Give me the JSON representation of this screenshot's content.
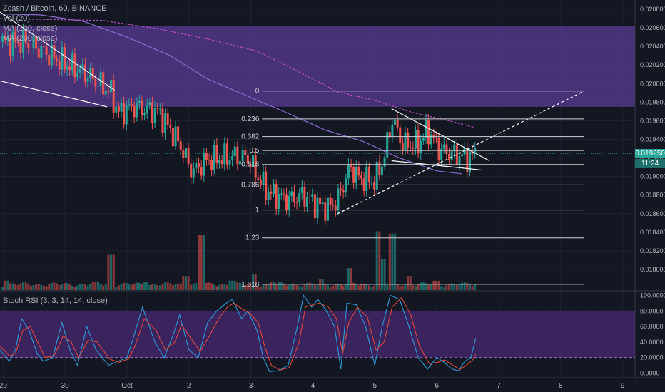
{
  "legend": {
    "symbol": "Zcash / Bitcoin, 60, BINANCE",
    "vol": "Vol (20)",
    "ma100": "MA (100, close)",
    "ma200": "MA (200, close)",
    "rsi": "Stoch RSI (3, 3, 14, 14, close)"
  },
  "price_tag": {
    "price": "0.019250",
    "countdown": "11:24"
  },
  "colors": {
    "background": "#131722",
    "grid": "#1e2230",
    "up": "#26a69a",
    "down": "#ef5350",
    "zone": "#5b3b99",
    "rsi_band": "#4a2a73",
    "ma100": "#8d6bd1",
    "ma200": "#c04fc7",
    "rsi_k": "#2a9bd8",
    "rsi_d": "#e0473d",
    "price_line": "#26a69a"
  },
  "chart_data": [
    {
      "type": "candlestick",
      "title": "Zcash / Bitcoin, 60, BINANCE",
      "y_ticks": [
        "0.020800",
        "0.020600",
        "0.020400",
        "0.020200",
        "0.020000",
        "0.019800",
        "0.019600",
        "0.019400",
        "0.019200",
        "0.019000",
        "0.018800",
        "0.018600",
        "0.018400",
        "0.018200",
        "0.018000"
      ],
      "ylim": [
        0.01777,
        0.0209
      ],
      "x_ticks": [
        {
          "label": "29",
          "x": 0
        },
        {
          "label": "30",
          "x": 1
        },
        {
          "label": "Oct",
          "x": 2
        },
        {
          "label": "2",
          "x": 3
        },
        {
          "label": "3",
          "x": 4
        },
        {
          "label": "4",
          "x": 5
        },
        {
          "label": "5",
          "x": 6
        },
        {
          "label": "6",
          "x": 7
        },
        {
          "label": "7",
          "x": 8
        },
        {
          "label": "8",
          "x": 9
        },
        {
          "label": "9",
          "x": 10
        }
      ],
      "xlim": [
        -0.05,
        10.2
      ],
      "last_price": 0.01925,
      "resistance_zone": [
        0.01975,
        0.02062
      ],
      "fib_levels": [
        {
          "label": "0",
          "value": 0.01992
        },
        {
          "label": "0.236",
          "value": 0.01962
        },
        {
          "label": "0.382",
          "value": 0.01943
        },
        {
          "label": "0.5",
          "value": 0.01928
        },
        {
          "label": "0.618",
          "value": 0.01913
        },
        {
          "label": "0.786",
          "value": 0.01891
        },
        {
          "label": "1",
          "value": 0.01864
        },
        {
          "label": "1.23",
          "value": 0.01834
        },
        {
          "label": "1.618",
          "value": 0.01784
        }
      ],
      "fib_x_range": [
        4.18,
        9.38
      ],
      "trend_lines": [
        {
          "from": [
            -0.05,
            0.02077
          ],
          "to": [
            1.8,
            0.01993
          ]
        },
        {
          "from": [
            -0.05,
            0.02003
          ],
          "to": [
            1.68,
            0.01975
          ]
        },
        {
          "from": [
            6.27,
            0.01973
          ],
          "to": [
            7.85,
            0.01917
          ]
        },
        {
          "from": [
            6.27,
            0.01917
          ],
          "to": [
            7.73,
            0.01907
          ]
        },
        {
          "from": [
            5.4,
            0.0186
          ],
          "to": [
            9.38,
            0.01992
          ],
          "dashed": true
        }
      ],
      "ma100_points": [
        [
          -0.05,
          0.02075
        ],
        [
          0.6,
          0.02074
        ],
        [
          1.3,
          0.02067
        ],
        [
          2.0,
          0.0205
        ],
        [
          2.7,
          0.0203
        ],
        [
          3.3,
          0.02005
        ],
        [
          4.0,
          0.01985
        ],
        [
          4.6,
          0.01968
        ],
        [
          5.2,
          0.0195
        ],
        [
          5.8,
          0.01938
        ],
        [
          6.4,
          0.0192
        ],
        [
          7.0,
          0.01906
        ],
        [
          7.4,
          0.01903
        ]
      ],
      "ma200_points": [
        [
          -0.05,
          0.0207
        ],
        [
          0.8,
          0.02069
        ],
        [
          1.6,
          0.02068
        ],
        [
          2.5,
          0.02059
        ],
        [
          3.3,
          0.02048
        ],
        [
          4.1,
          0.02035
        ],
        [
          4.8,
          0.02012
        ],
        [
          5.4,
          0.01991
        ],
        [
          6.0,
          0.01982
        ],
        [
          6.6,
          0.01969
        ],
        [
          7.2,
          0.0196
        ],
        [
          7.6,
          0.01953
        ]
      ],
      "ohlc_key_points": [
        [
          -0.05,
          0.02045
        ],
        [
          0.4,
          0.02044
        ],
        [
          0.9,
          0.02025
        ],
        [
          1.35,
          0.0201
        ],
        [
          1.75,
          0.0199
        ],
        [
          1.85,
          0.01968
        ],
        [
          2.1,
          0.01975
        ],
        [
          2.5,
          0.0197
        ],
        [
          2.85,
          0.01935
        ],
        [
          3.05,
          0.01905
        ],
        [
          3.3,
          0.01918
        ],
        [
          3.75,
          0.01922
        ],
        [
          3.95,
          0.0192
        ],
        [
          4.15,
          0.01895
        ],
        [
          4.3,
          0.01882
        ],
        [
          4.6,
          0.01875
        ],
        [
          4.85,
          0.0188
        ],
        [
          5.05,
          0.0187
        ],
        [
          5.25,
          0.01866
        ],
        [
          5.4,
          0.01875
        ],
        [
          5.6,
          0.0191
        ],
        [
          5.75,
          0.01898
        ],
        [
          6.0,
          0.01895
        ],
        [
          6.15,
          0.0192
        ],
        [
          6.28,
          0.01962
        ],
        [
          6.45,
          0.01935
        ],
        [
          6.7,
          0.01935
        ],
        [
          6.85,
          0.0195
        ],
        [
          7.05,
          0.01928
        ],
        [
          7.3,
          0.01924
        ],
        [
          7.5,
          0.0192
        ],
        [
          7.63,
          0.01925
        ]
      ],
      "volume_ylim": [
        0,
        100
      ],
      "volume_spikes": [
        [
          0.05,
          12
        ],
        [
          0.55,
          6
        ],
        [
          1.0,
          8
        ],
        [
          1.5,
          10
        ],
        [
          1.75,
          45
        ],
        [
          2.3,
          10
        ],
        [
          2.95,
          18
        ],
        [
          3.2,
          70
        ],
        [
          3.7,
          12
        ],
        [
          4.05,
          20
        ],
        [
          4.35,
          10
        ],
        [
          5.15,
          14
        ],
        [
          5.6,
          28
        ],
        [
          6.05,
          75
        ],
        [
          6.15,
          40
        ],
        [
          6.28,
          72
        ],
        [
          6.55,
          18
        ],
        [
          7.0,
          12
        ],
        [
          7.4,
          8
        ]
      ]
    },
    {
      "type": "line",
      "title": "Stoch RSI (3, 3, 14, 14, close)",
      "y_ticks": [
        "100.0000",
        "80.0000",
        "60.0000",
        "40.0000",
        "20.0000",
        "0.0000"
      ],
      "ylim": [
        -6,
        106
      ],
      "band": [
        20,
        80
      ],
      "series": [
        {
          "name": "K",
          "points": [
            [
              -0.05,
              30
            ],
            [
              0.1,
              15
            ],
            [
              0.2,
              30
            ],
            [
              0.3,
              70
            ],
            [
              0.42,
              55
            ],
            [
              0.55,
              25
            ],
            [
              0.65,
              15
            ],
            [
              0.8,
              20
            ],
            [
              0.95,
              65
            ],
            [
              1.08,
              30
            ],
            [
              1.2,
              10
            ],
            [
              1.35,
              60
            ],
            [
              1.5,
              30
            ],
            [
              1.7,
              10
            ],
            [
              1.85,
              15
            ],
            [
              2.0,
              20
            ],
            [
              2.1,
              45
            ],
            [
              2.25,
              85
            ],
            [
              2.45,
              40
            ],
            [
              2.6,
              20
            ],
            [
              2.75,
              50
            ],
            [
              2.85,
              75
            ],
            [
              3.0,
              30
            ],
            [
              3.15,
              20
            ],
            [
              3.3,
              65
            ],
            [
              3.45,
              80
            ],
            [
              3.6,
              90
            ],
            [
              3.7,
              95
            ],
            [
              3.85,
              70
            ],
            [
              3.95,
              80
            ],
            [
              4.1,
              55
            ],
            [
              4.2,
              20
            ],
            [
              4.3,
              2
            ],
            [
              4.45,
              3
            ],
            [
              4.6,
              10
            ],
            [
              4.75,
              60
            ],
            [
              4.85,
              100
            ],
            [
              4.98,
              85
            ],
            [
              5.08,
              95
            ],
            [
              5.22,
              80
            ],
            [
              5.35,
              60
            ],
            [
              5.45,
              5
            ],
            [
              5.55,
              90
            ],
            [
              5.7,
              88
            ],
            [
              5.85,
              60
            ],
            [
              6.0,
              10
            ],
            [
              6.12,
              60
            ],
            [
              6.25,
              100
            ],
            [
              6.4,
              95
            ],
            [
              6.55,
              60
            ],
            [
              6.7,
              20
            ],
            [
              6.85,
              5
            ],
            [
              7.0,
              20
            ],
            [
              7.1,
              15
            ],
            [
              7.25,
              5
            ],
            [
              7.35,
              3
            ],
            [
              7.45,
              15
            ],
            [
              7.55,
              20
            ],
            [
              7.63,
              45
            ]
          ]
        },
        {
          "name": "D",
          "points": [
            [
              -0.05,
              35
            ],
            [
              0.1,
              22
            ],
            [
              0.2,
              25
            ],
            [
              0.32,
              55
            ],
            [
              0.44,
              60
            ],
            [
              0.57,
              38
            ],
            [
              0.68,
              20
            ],
            [
              0.82,
              22
            ],
            [
              0.97,
              48
            ],
            [
              1.1,
              40
            ],
            [
              1.22,
              20
            ],
            [
              1.37,
              42
            ],
            [
              1.52,
              40
            ],
            [
              1.72,
              18
            ],
            [
              1.87,
              14
            ],
            [
              2.02,
              18
            ],
            [
              2.13,
              35
            ],
            [
              2.28,
              70
            ],
            [
              2.47,
              55
            ],
            [
              2.62,
              30
            ],
            [
              2.77,
              40
            ],
            [
              2.88,
              62
            ],
            [
              3.03,
              45
            ],
            [
              3.18,
              28
            ],
            [
              3.33,
              48
            ],
            [
              3.48,
              70
            ],
            [
              3.62,
              85
            ],
            [
              3.72,
              90
            ],
            [
              3.87,
              82
            ],
            [
              3.97,
              78
            ],
            [
              4.12,
              65
            ],
            [
              4.22,
              35
            ],
            [
              4.33,
              10
            ],
            [
              4.47,
              4
            ],
            [
              4.62,
              7
            ],
            [
              4.78,
              40
            ],
            [
              4.88,
              85
            ],
            [
              5.0,
              88
            ],
            [
              5.1,
              90
            ],
            [
              5.25,
              85
            ],
            [
              5.38,
              70
            ],
            [
              5.48,
              25
            ],
            [
              5.58,
              65
            ],
            [
              5.72,
              85
            ],
            [
              5.88,
              72
            ],
            [
              6.02,
              30
            ],
            [
              6.15,
              40
            ],
            [
              6.28,
              85
            ],
            [
              6.43,
              97
            ],
            [
              6.58,
              75
            ],
            [
              6.72,
              35
            ],
            [
              6.88,
              12
            ],
            [
              7.02,
              14
            ],
            [
              7.13,
              17
            ],
            [
              7.28,
              9
            ],
            [
              7.38,
              5
            ],
            [
              7.48,
              10
            ],
            [
              7.58,
              17
            ],
            [
              7.63,
              25
            ]
          ]
        }
      ]
    }
  ]
}
